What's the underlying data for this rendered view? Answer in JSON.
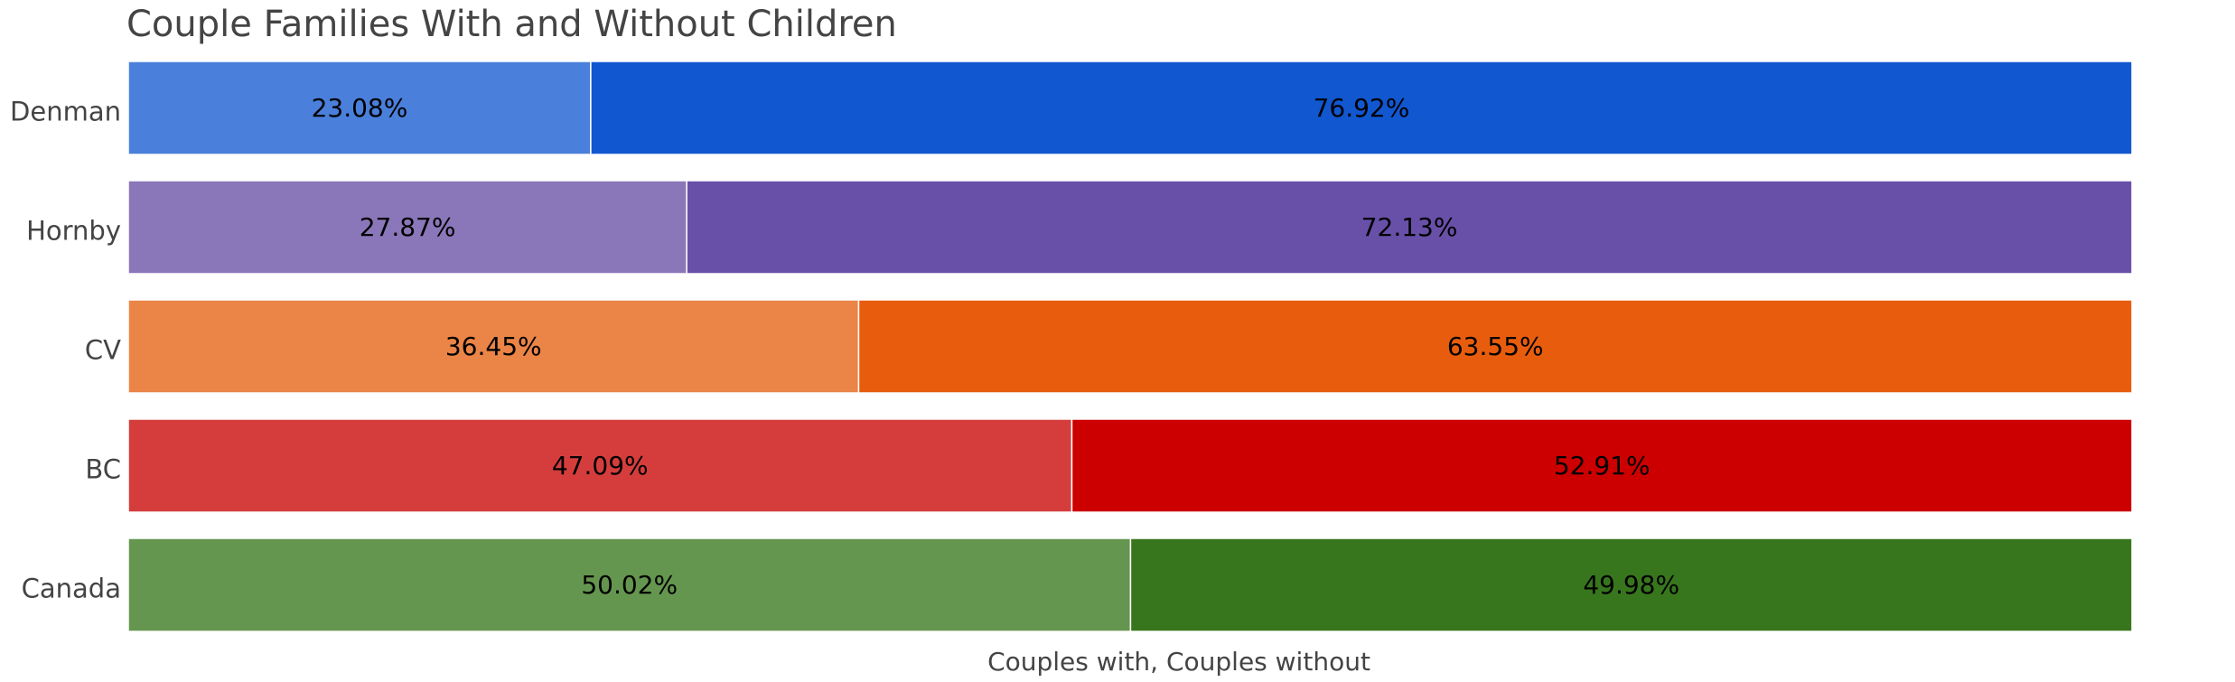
{
  "chart_data": {
    "type": "bar",
    "orientation": "horizontal",
    "stacked": true,
    "normalized": true,
    "title": "Couple Families With and Without Children",
    "xlabel": "Couples with, Couples without",
    "ylabel": "",
    "xlim": [
      0,
      100
    ],
    "grid": false,
    "legend": "none",
    "categories": [
      "Denman",
      "Hornby",
      "CV",
      "BC",
      "Canada"
    ],
    "series": [
      {
        "key": "with",
        "values": [
          23.08,
          27.87,
          36.45,
          47.09,
          50.02
        ],
        "labels": [
          "23.08%",
          "27.87%",
          "36.45%",
          "47.09%",
          "50.02%"
        ],
        "colors": [
          "#4a7fdb",
          "#8a77b9",
          "#ea8447",
          "#d53d3d",
          "#65964f"
        ]
      },
      {
        "key": "without",
        "values": [
          76.92,
          72.13,
          63.55,
          52.91,
          49.98
        ],
        "labels": [
          "76.92%",
          "72.13%",
          "63.55%",
          "52.91%",
          "49.98%"
        ],
        "colors": [
          "#1157d0",
          "#6850a8",
          "#e85d0d",
          "#cc0000",
          "#38761d"
        ]
      }
    ]
  }
}
